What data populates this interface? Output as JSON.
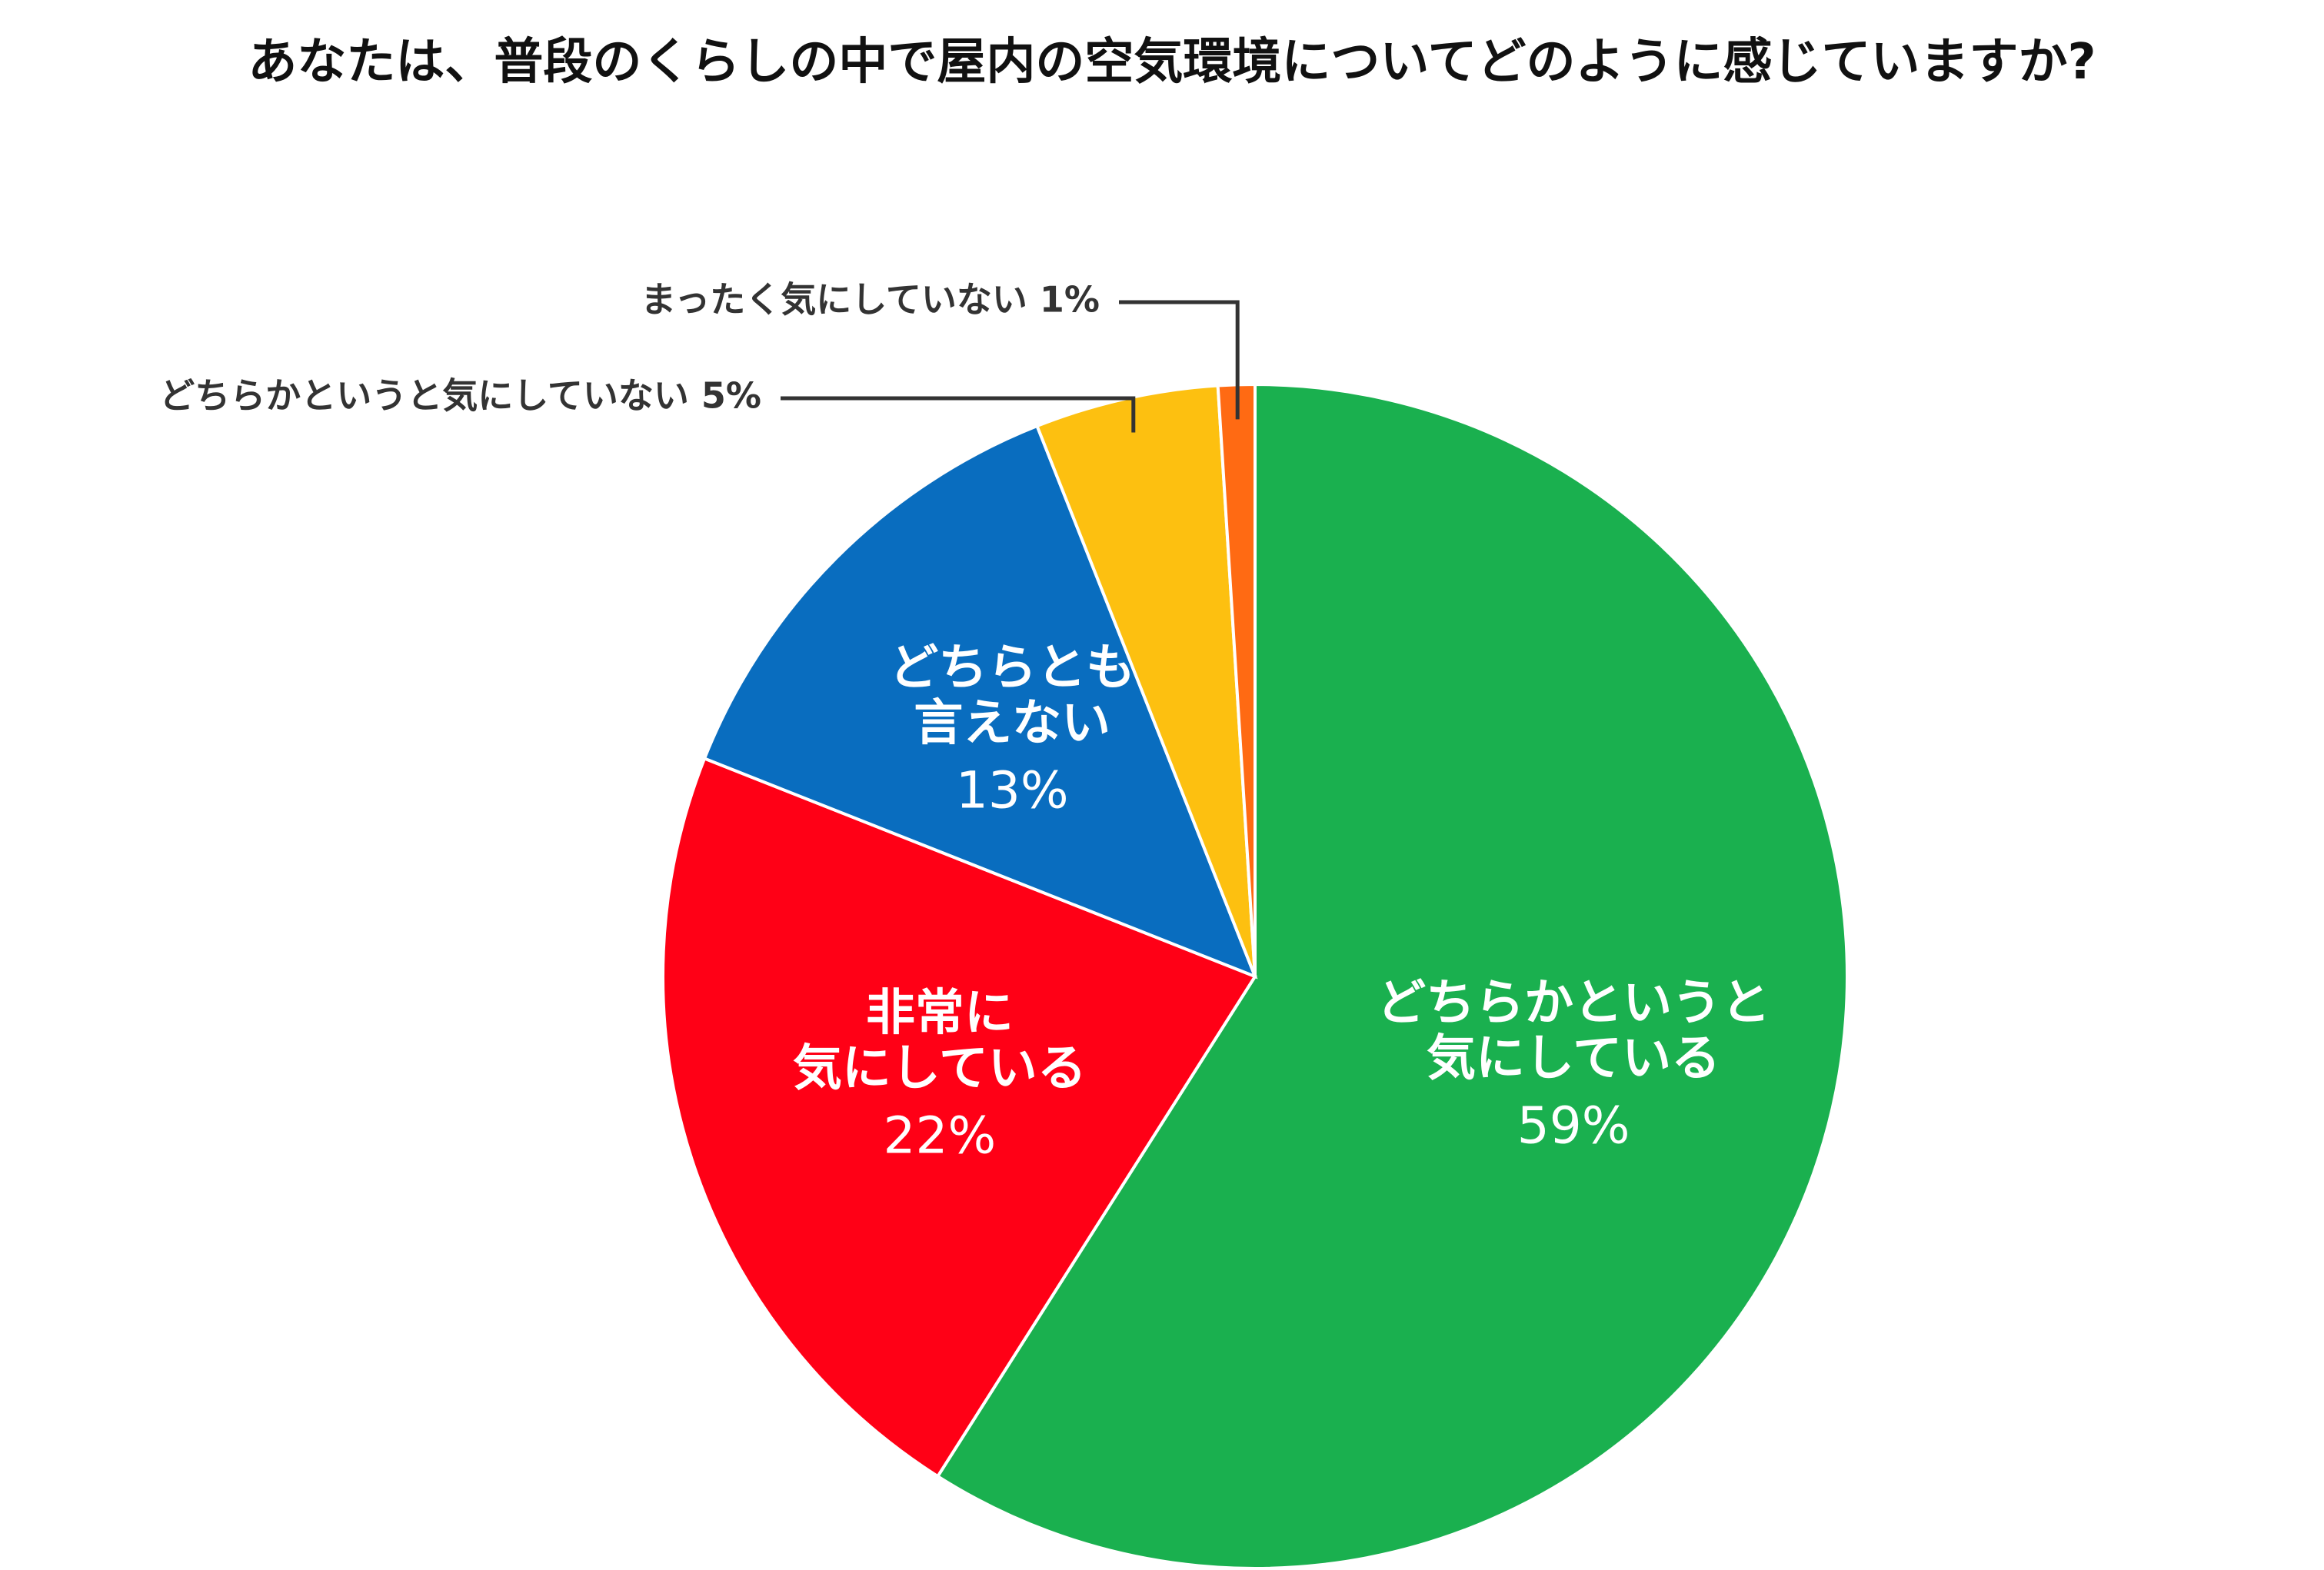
{
  "chart_data": {
    "type": "pie",
    "title": "あなたは、普段のくらしの中で屋内の空気環境についてどのように感じていますか?",
    "unit": "%",
    "start": "12 o'clock, clockwise",
    "slices": [
      {
        "label_lines": [
          "どちらかというと",
          "気にしている"
        ],
        "value": 59,
        "value_label": "59%",
        "color": "#1AB04F",
        "label_style": "inside"
      },
      {
        "label_lines": [
          "非常に",
          "気にしている"
        ],
        "value": 22,
        "value_label": "22%",
        "color": "#FF0016",
        "label_style": "inside"
      },
      {
        "label_lines": [
          "どちらとも",
          "言えない"
        ],
        "value": 13,
        "value_label": "13%",
        "color": "#096DBF",
        "label_style": "inside"
      },
      {
        "label_lines": [
          "どちらかというと気にしていない"
        ],
        "value": 5,
        "value_label": "5%",
        "color": "#FDC010",
        "label_style": "callout"
      },
      {
        "label_lines": [
          "まったく気にしていない"
        ],
        "value": 1,
        "value_label": "1%",
        "color": "#FF6A13",
        "label_style": "callout"
      }
    ]
  }
}
